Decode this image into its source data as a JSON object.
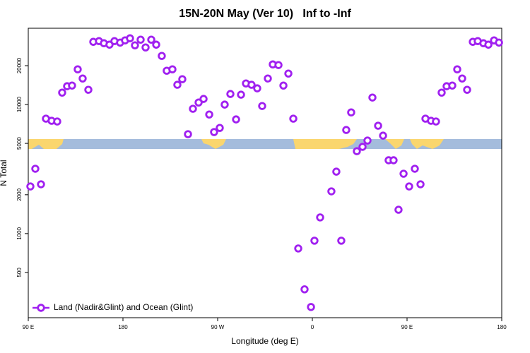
{
  "chart_data": {
    "type": "scatter",
    "title": "15N-20N May (Ver 10)   Inf to -Inf",
    "xlabel": "Longitude (deg E)",
    "ylabel": "N Total",
    "log_y": true,
    "legend": "bottom-left",
    "xlim": [
      90,
      540
    ],
    "ylim": [
      223,
      39000
    ],
    "xticks": [
      {
        "value": 90,
        "label": "90 E"
      },
      180,
      {
        "value": 270,
        "label": "90 W"
      },
      {
        "value": 360,
        "label": "0"
      },
      {
        "value": 450,
        "label": "90 E"
      },
      {
        "value": 540,
        "label": "180"
      }
    ],
    "yticks": [
      500,
      1000,
      2000,
      5000,
      10000,
      20000
    ],
    "x": [
      92.0,
      96.7,
      102.1,
      106.8,
      112.2,
      117.5,
      122.2,
      126.9,
      131.6,
      137.0,
      141.7,
      147.1,
      151.8,
      157.2,
      161.9,
      167.2,
      171.9,
      177.3,
      182.0,
      186.7,
      191.4,
      196.8,
      201.5,
      206.9,
      211.6,
      216.9,
      221.6,
      227.0,
      231.7,
      236.4,
      241.8,
      246.5,
      251.9,
      256.6,
      262.0,
      266.6,
      272.0,
      276.7,
      282.1,
      287.5,
      292.2,
      296.9,
      302.2,
      307.6,
      312.3,
      317.7,
      322.4,
      327.8,
      332.5,
      337.2,
      341.9,
      346.6,
      352.6,
      358.7,
      362.0,
      367.4,
      378.1,
      382.8,
      387.5,
      392.2,
      396.9,
      402.3,
      407.7,
      412.4,
      417.1,
      422.5,
      427.2,
      432.5,
      437.2,
      441.9,
      446.7,
      452.0,
      457.4,
      462.8,
      467.5,
      472.8,
      477.5,
      482.9,
      487.6,
      493.0,
      497.7,
      502.4,
      507.1,
      512.5,
      517.2,
      522.6,
      527.3,
      532.7,
      537.4
    ],
    "series": [
      {
        "name": "Land (Nadir&Glint) and Ocean (Glint)",
        "color": "#a020f0",
        "values": [
          2320,
          3180,
          2410,
          7770,
          7480,
          7390,
          12370,
          13860,
          14030,
          18740,
          15910,
          13010,
          30600,
          31000,
          29850,
          29100,
          31000,
          30200,
          31400,
          32600,
          28760,
          31800,
          27700,
          31800,
          29100,
          23800,
          18270,
          18740,
          14220,
          15710,
          5890,
          9270,
          10370,
          11050,
          8370,
          6120,
          6590,
          9990,
          12070,
          7670,
          11920,
          14570,
          14220,
          13350,
          9740,
          15910,
          20460,
          20220,
          14030,
          17380,
          7770,
          767,
          370,
          270,
          881,
          1335,
          2125,
          3020,
          881,
          6350,
          8690,
          4350,
          4700,
          5260,
          11330,
          6850,
          5740,
          3700,
          3700,
          1530,
          2910,
          2320,
          3180,
          2410,
          7770,
          7480,
          7390,
          12370,
          13860,
          14030,
          18740,
          15910,
          13010,
          30600,
          31000,
          29850,
          29100,
          31400,
          30200
        ]
      }
    ]
  }
}
